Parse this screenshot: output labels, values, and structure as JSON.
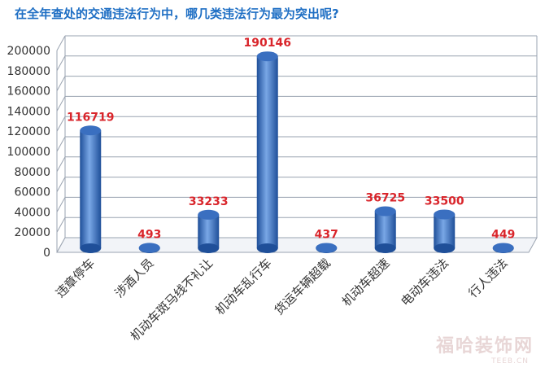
{
  "question": "在全年查处的交通违法行为中，哪几类违法行为最为突出呢?",
  "watermark": "福哈装饰网",
  "watermark_sub": "TEEB.CN",
  "colors": {
    "bar": "#3a6fc0",
    "bar_dark": "#1f4f99",
    "bar_light": "#79a7e6",
    "label": "#d9252b",
    "axis": "#333333",
    "grid": "#9aa3b0"
  },
  "chart_data": {
    "type": "bar",
    "style": "3d-cylinder",
    "categories": [
      "违章停车",
      "涉酒人员",
      "机动车斑马线不礼让",
      "机动车乱行车",
      "货运车辆超载",
      "机动车超速",
      "电动车违法",
      "行人违法"
    ],
    "values": [
      116719,
      493,
      33233,
      190146,
      437,
      36725,
      33500,
      449
    ],
    "ylim": [
      0,
      200000
    ],
    "yticks": [
      0,
      20000,
      40000,
      60000,
      80000,
      100000,
      120000,
      140000,
      160000,
      180000,
      200000
    ],
    "grid": true,
    "legend": "none"
  }
}
